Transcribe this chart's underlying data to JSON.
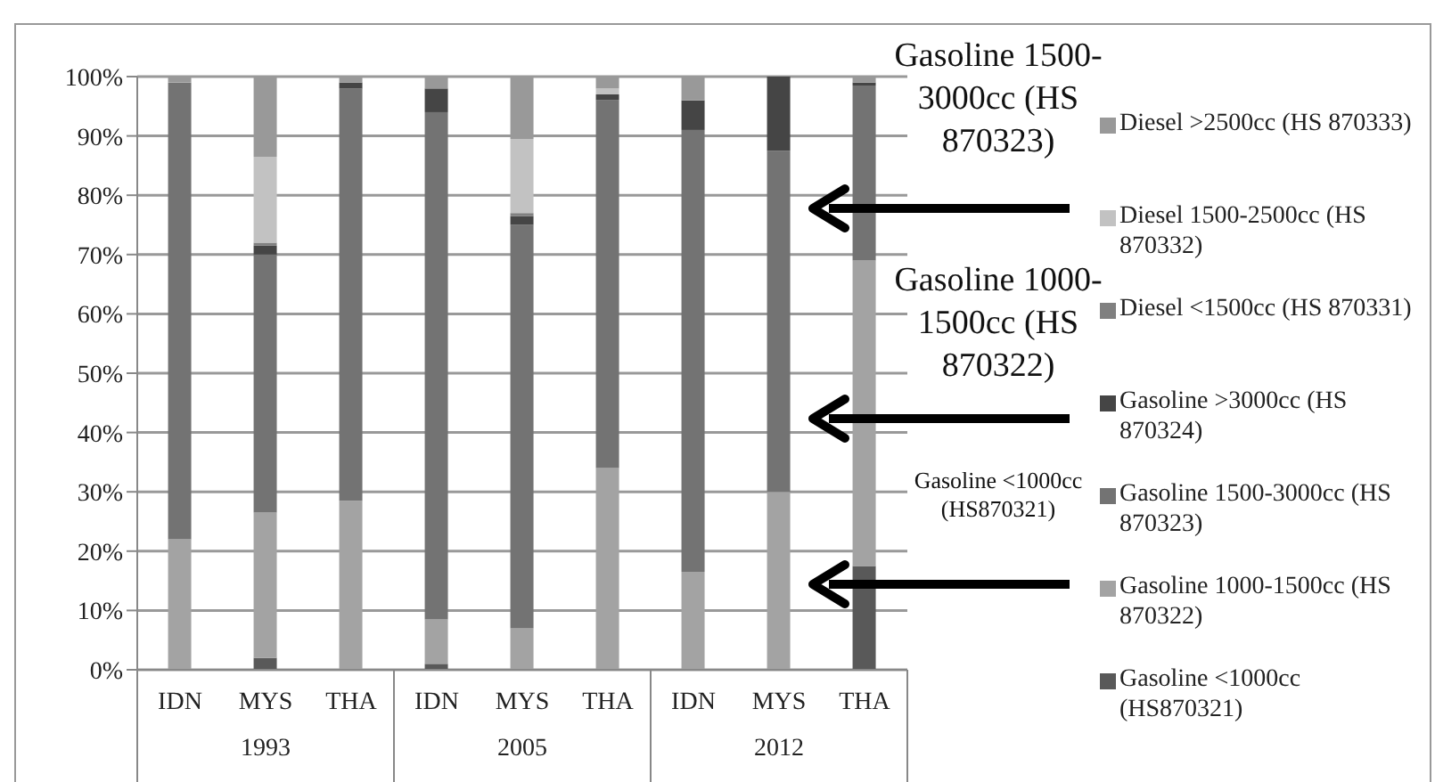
{
  "chart_data": {
    "type": "bar",
    "stacked": true,
    "categories": [
      "IDN",
      "MYS",
      "THA",
      "IDN",
      "MYS",
      "THA",
      "IDN",
      "MYS",
      "THA"
    ],
    "series": [
      {
        "name": "Gasoline <1000cc (HS870321)",
        "color": "#595959",
        "values": [
          0,
          2,
          0,
          1,
          null,
          0,
          0,
          0,
          17.5
        ]
      },
      {
        "name": "Gasoline 1000-1500cc (HS 870322)",
        "color": "#a3a3a3",
        "values": [
          22,
          24.5,
          28.5,
          7.5,
          7,
          34,
          16.5,
          30,
          51.5
        ]
      },
      {
        "name": "Gasoline 1500-3000cc (HS 870323)",
        "color": "#737373",
        "values": [
          77,
          43.5,
          69.5,
          85.5,
          68,
          62,
          74.5,
          57.5,
          29.5
        ]
      },
      {
        "name": "Gasoline >3000cc (HS 870324)",
        "color": "#454545",
        "values": [
          0,
          1.5,
          1,
          4,
          1.5,
          1,
          5,
          12.5,
          0.5
        ]
      },
      {
        "name": "Diesel <1500cc (HS 870331)",
        "color": "#808080",
        "values": [
          0,
          0.5,
          0,
          0,
          0.5,
          0,
          0,
          0,
          0
        ]
      },
      {
        "name": "Diesel 1500-2500cc (HS 870332)",
        "color": "#c2c2c2",
        "values": [
          0,
          14.5,
          0,
          0,
          12.5,
          1,
          0,
          0,
          0
        ]
      },
      {
        "name": "Diesel >2500cc (HS 870333)",
        "color": "#999999",
        "values": [
          1,
          13.5,
          1,
          2,
          10.5,
          2,
          4,
          0,
          1
        ]
      }
    ],
    "ylim": [
      0,
      100
    ],
    "yticks": [
      {
        "value": 0,
        "label": "0%"
      },
      {
        "value": 10,
        "label": "10%"
      },
      {
        "value": 20,
        "label": "20%"
      },
      {
        "value": 30,
        "label": "30%"
      },
      {
        "value": 40,
        "label": "40%"
      },
      {
        "value": 50,
        "label": "50%"
      },
      {
        "value": 60,
        "label": "60%"
      },
      {
        "value": 70,
        "label": "70%"
      },
      {
        "value": 80,
        "label": "80%"
      },
      {
        "value": 90,
        "label": "90%"
      },
      {
        "value": 100,
        "label": "100%"
      }
    ],
    "grid": "y",
    "legend": "right",
    "annotations": [
      "1993",
      "2005",
      "2012",
      "Gasoline 1500-3000cc (HS 870323)",
      "Gasoline 1000-1500cc (HS 870322)",
      "Gasoline <1000cc (HS870321)"
    ]
  }
}
